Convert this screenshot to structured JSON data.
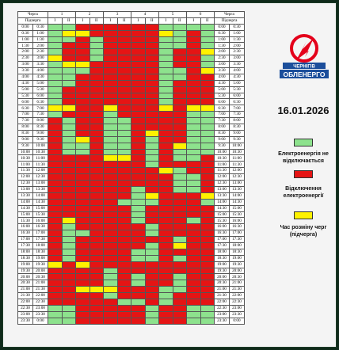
{
  "headers": {
    "queue_label": "Черга",
    "subqueue_label": "Підчерга",
    "queues": [
      "1",
      "2",
      "3",
      "4",
      "5",
      "6"
    ],
    "subqueues": [
      "I",
      "II"
    ]
  },
  "times": [
    [
      "0:00",
      "0:30"
    ],
    [
      "0:30",
      "1:00"
    ],
    [
      "1:00",
      "1:30"
    ],
    [
      "1:30",
      "2:00"
    ],
    [
      "2:00",
      "2:30"
    ],
    [
      "2:30",
      "3:00"
    ],
    [
      "3:00",
      "3:30"
    ],
    [
      "3:30",
      "4:00"
    ],
    [
      "4:00",
      "4:30"
    ],
    [
      "4:30",
      "5:00"
    ],
    [
      "5:00",
      "5:30"
    ],
    [
      "5:30",
      "6:00"
    ],
    [
      "6:00",
      "6:30"
    ],
    [
      "6:30",
      "7:00"
    ],
    [
      "7:00",
      "7:30"
    ],
    [
      "7:30",
      "8:00"
    ],
    [
      "8:00",
      "8:30"
    ],
    [
      "8:30",
      "9:00"
    ],
    [
      "9:00",
      "9:30"
    ],
    [
      "9:30",
      "10:00"
    ],
    [
      "10:00",
      "10:30"
    ],
    [
      "10:30",
      "11:00"
    ],
    [
      "11:00",
      "11:30"
    ],
    [
      "11:30",
      "12:00"
    ],
    [
      "12:00",
      "12:30"
    ],
    [
      "12:30",
      "13:00"
    ],
    [
      "13:00",
      "13:30"
    ],
    [
      "13:30",
      "14:00"
    ],
    [
      "14:00",
      "14:30"
    ],
    [
      "14:30",
      "15:00"
    ],
    [
      "15:00",
      "15:30"
    ],
    [
      "15:30",
      "16:00"
    ],
    [
      "16:00",
      "16:30"
    ],
    [
      "16:30",
      "17:00"
    ],
    [
      "17:00",
      "17:30"
    ],
    [
      "17:30",
      "18:00"
    ],
    [
      "18:00",
      "18:30"
    ],
    [
      "18:30",
      "19:00"
    ],
    [
      "19:00",
      "19:30"
    ],
    [
      "19:30",
      "20:00"
    ],
    [
      "20:00",
      "20:30"
    ],
    [
      "20:30",
      "21:00"
    ],
    [
      "21:00",
      "21:30"
    ],
    [
      "21:30",
      "22:00"
    ],
    [
      "22:00",
      "22:30"
    ],
    [
      "22:30",
      "23:00"
    ],
    [
      "23:00",
      "23:30"
    ],
    [
      "23:30",
      "0:00"
    ]
  ],
  "status_rows": [
    "GGRRRRRRGGGG",
    "GYYRRRRRYGRG",
    "GGRGRRRRGGRG",
    "GRRGRRRRGGRG",
    "GRRGRRRRGRRY",
    "YRRGRRRRGRRG",
    "GYYRRRRRGRRG",
    "GGGRRRRRGGRY",
    "GGRRRRRRGGRR",
    "GGRRRRRRGRRR",
    "GRRRRRRRGRRR",
    "GRRRRRRRGRRR",
    "GRRRRRRRGRRR",
    "YYRRYRRRYRYY",
    "GRRRGRRRRRGG",
    "RGRRGGRRRRGG",
    "RGRRGGRRRRGG",
    "RGRRGGRYRRGG",
    "RGYRGGRGRRGG",
    "RGGRGGRGRYGG",
    "RGGRGGRGRGGG",
    "RRRRYYRGRGGR",
    "RRRRRRRGRRRR",
    "RRRRRRRRYGRR",
    "RRRRRRRRRGGR",
    "RRRRRRRRRGGR",
    "RRRRRRGRRGGR",
    "RRRRRRGYRRRY",
    "RRRRRGGGRRRG",
    "RRRRRRGRRRRR",
    "RRRRRRGRRRRR",
    "RYRRRRGRRRGR",
    "RGRRRRRGRRRR",
    "RGGRRRRGRRRR",
    "RGRRRRRRRGRR",
    "RGRRRRRGRYRR",
    "RGRRRRGGRRRR",
    "RGRRRRGGRGRR",
    "YRYRRRRRRRRR",
    "RRRRGRRRRRRR",
    "RRRRGRGRRGRR",
    "RRRRGRGRRGRR",
    "RRYYYRRRGGRR",
    "RRRRGRRRGRRR",
    "RRRRRGGRGRRR",
    "GGRRRRRGRRGG",
    "GGRRRRRGRRGG",
    "GGRRRRRGRRGG"
  ],
  "logo": {
    "line1": "ЧЕРНІГІВ",
    "line2": "ОБЛЕНЕРГО",
    "red": "#e4001b",
    "blue": "#1b4e9b"
  },
  "date": "16.01.2026",
  "legend": [
    {
      "color": "#8de28d",
      "text": "Електроенергія не відключається"
    },
    {
      "color": "#e51414",
      "text": "Відключення електроенергії"
    },
    {
      "color": "#fff200",
      "text": "Час розміну черг (підчерга)"
    }
  ]
}
